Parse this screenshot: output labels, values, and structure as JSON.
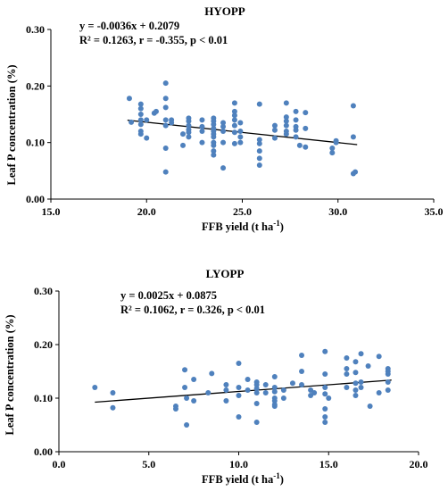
{
  "colors": {
    "point": "#4f81bd",
    "trendline": "#000000",
    "axis": "#000000"
  },
  "chart_data": [
    {
      "type": "scatter",
      "title": "HYOPP",
      "equation": "y = -0.0036x + 0.2079",
      "stats": "R² = 0.1263, r = -0.355, p < 0.01",
      "xlabel": "FFB yield  (t ha",
      "xlabel_sup": "-1",
      "xlabel_tail": ")",
      "ylabel": "Leaf P concentration (%)",
      "xlim": [
        15,
        35
      ],
      "ylim": [
        0,
        0.3
      ],
      "xticks": [
        15,
        20,
        25,
        30,
        35
      ],
      "xtick_labels": [
        "15.0",
        "20.0",
        "25.0",
        "30.0",
        "35.0"
      ],
      "yticks": [
        0,
        0.1,
        0.2,
        0.3
      ],
      "ytick_labels": [
        "0.00",
        "0.10",
        "0.20",
        "0.30"
      ],
      "trendline": {
        "slope": -0.0036,
        "intercept": 0.2079,
        "x_range": [
          19,
          31
        ]
      },
      "points": [
        [
          19.1,
          0.178
        ],
        [
          19.2,
          0.136
        ],
        [
          19.7,
          0.168
        ],
        [
          19.7,
          0.16
        ],
        [
          19.7,
          0.15
        ],
        [
          19.7,
          0.14
        ],
        [
          19.7,
          0.132
        ],
        [
          19.7,
          0.12
        ],
        [
          19.7,
          0.115
        ],
        [
          20.0,
          0.14
        ],
        [
          20.0,
          0.108
        ],
        [
          20.4,
          0.152
        ],
        [
          20.5,
          0.155
        ],
        [
          21.0,
          0.205
        ],
        [
          21.0,
          0.178
        ],
        [
          21.0,
          0.162
        ],
        [
          21.0,
          0.14
        ],
        [
          21.0,
          0.13
        ],
        [
          21.0,
          0.09
        ],
        [
          21.0,
          0.048
        ],
        [
          21.3,
          0.14
        ],
        [
          21.3,
          0.135
        ],
        [
          21.9,
          0.115
        ],
        [
          21.9,
          0.095
        ],
        [
          22.2,
          0.143
        ],
        [
          22.2,
          0.138
        ],
        [
          22.2,
          0.13
        ],
        [
          22.2,
          0.123
        ],
        [
          22.2,
          0.118
        ],
        [
          22.2,
          0.11
        ],
        [
          22.9,
          0.14
        ],
        [
          22.9,
          0.128
        ],
        [
          22.9,
          0.12
        ],
        [
          22.9,
          0.1
        ],
        [
          23.5,
          0.143
        ],
        [
          23.5,
          0.138
        ],
        [
          23.5,
          0.132
        ],
        [
          23.5,
          0.125
        ],
        [
          23.5,
          0.12
        ],
        [
          23.5,
          0.115
        ],
        [
          23.5,
          0.11
        ],
        [
          23.5,
          0.1
        ],
        [
          23.5,
          0.095
        ],
        [
          23.5,
          0.085
        ],
        [
          23.5,
          0.078
        ],
        [
          24.0,
          0.135
        ],
        [
          24.0,
          0.128
        ],
        [
          24.0,
          0.12
        ],
        [
          24.0,
          0.1
        ],
        [
          24.0,
          0.055
        ],
        [
          24.6,
          0.17
        ],
        [
          24.6,
          0.155
        ],
        [
          24.6,
          0.148
        ],
        [
          24.6,
          0.14
        ],
        [
          24.6,
          0.13
        ],
        [
          24.6,
          0.118
        ],
        [
          24.6,
          0.098
        ],
        [
          24.9,
          0.135
        ],
        [
          24.9,
          0.12
        ],
        [
          24.9,
          0.11
        ],
        [
          24.9,
          0.1
        ],
        [
          25.9,
          0.168
        ],
        [
          25.9,
          0.105
        ],
        [
          25.9,
          0.098
        ],
        [
          25.9,
          0.085
        ],
        [
          25.9,
          0.072
        ],
        [
          25.9,
          0.06
        ],
        [
          26.7,
          0.13
        ],
        [
          26.7,
          0.122
        ],
        [
          26.7,
          0.108
        ],
        [
          27.3,
          0.17
        ],
        [
          27.3,
          0.145
        ],
        [
          27.3,
          0.138
        ],
        [
          27.3,
          0.13
        ],
        [
          27.3,
          0.12
        ],
        [
          27.3,
          0.115
        ],
        [
          27.8,
          0.155
        ],
        [
          27.8,
          0.14
        ],
        [
          27.8,
          0.128
        ],
        [
          27.8,
          0.122
        ],
        [
          27.8,
          0.11
        ],
        [
          28.0,
          0.095
        ],
        [
          28.3,
          0.153
        ],
        [
          28.3,
          0.125
        ],
        [
          28.3,
          0.092
        ],
        [
          29.7,
          0.09
        ],
        [
          29.7,
          0.082
        ],
        [
          29.9,
          0.103
        ],
        [
          29.9,
          0.1
        ],
        [
          30.8,
          0.165
        ],
        [
          30.8,
          0.11
        ],
        [
          30.8,
          0.045
        ],
        [
          30.9,
          0.048
        ]
      ]
    },
    {
      "type": "scatter",
      "title": "LYOPP",
      "equation": "y = 0.0025x + 0.0875",
      "stats": "R² = 0.1062, r  = 0.326, p < 0.01",
      "xlabel": "FFB yield  (t ha",
      "xlabel_sup": "-1",
      "xlabel_tail": ")",
      "ylabel": "Leaf P concentration (%)",
      "xlim": [
        0,
        20
      ],
      "ylim": [
        0,
        0.3
      ],
      "xticks": [
        0,
        5,
        10,
        15,
        20
      ],
      "xtick_labels": [
        "0.0",
        "5.0",
        "10.0",
        "15.0",
        "20.0"
      ],
      "yticks": [
        0,
        0.1,
        0.2,
        0.3
      ],
      "ytick_labels": [
        "0.00",
        "0.10",
        "0.20",
        "0.30"
      ],
      "trendline": {
        "slope": 0.0025,
        "intercept": 0.0875,
        "x_range": [
          2,
          18.5
        ]
      },
      "points": [
        [
          2.0,
          0.12
        ],
        [
          3.0,
          0.11
        ],
        [
          3.0,
          0.082
        ],
        [
          6.5,
          0.085
        ],
        [
          6.5,
          0.08
        ],
        [
          7.0,
          0.153
        ],
        [
          7.0,
          0.12
        ],
        [
          7.1,
          0.1
        ],
        [
          7.1,
          0.05
        ],
        [
          7.5,
          0.135
        ],
        [
          7.5,
          0.095
        ],
        [
          8.5,
          0.146
        ],
        [
          8.3,
          0.11
        ],
        [
          9.3,
          0.125
        ],
        [
          9.3,
          0.115
        ],
        [
          9.3,
          0.095
        ],
        [
          10.0,
          0.165
        ],
        [
          10.0,
          0.12
        ],
        [
          10.0,
          0.105
        ],
        [
          10.0,
          0.065
        ],
        [
          10.5,
          0.135
        ],
        [
          10.5,
          0.115
        ],
        [
          11.0,
          0.13
        ],
        [
          11.0,
          0.125
        ],
        [
          11.0,
          0.118
        ],
        [
          11.0,
          0.11
        ],
        [
          11.0,
          0.09
        ],
        [
          11.0,
          0.055
        ],
        [
          11.5,
          0.125
        ],
        [
          11.5,
          0.11
        ],
        [
          12.0,
          0.14
        ],
        [
          12.0,
          0.12
        ],
        [
          12.0,
          0.112
        ],
        [
          12.0,
          0.1
        ],
        [
          12.0,
          0.095
        ],
        [
          12.0,
          0.088
        ],
        [
          12.0,
          0.085
        ],
        [
          12.5,
          0.115
        ],
        [
          12.5,
          0.1
        ],
        [
          13.0,
          0.128
        ],
        [
          13.5,
          0.18
        ],
        [
          13.5,
          0.15
        ],
        [
          13.5,
          0.125
        ],
        [
          14.0,
          0.115
        ],
        [
          14.0,
          0.105
        ],
        [
          14.2,
          0.11
        ],
        [
          14.8,
          0.187
        ],
        [
          14.8,
          0.145
        ],
        [
          14.8,
          0.12
        ],
        [
          14.8,
          0.108
        ],
        [
          14.8,
          0.08
        ],
        [
          14.8,
          0.065
        ],
        [
          14.8,
          0.055
        ],
        [
          15.0,
          0.1
        ],
        [
          16.0,
          0.175
        ],
        [
          16.0,
          0.155
        ],
        [
          16.0,
          0.145
        ],
        [
          16.0,
          0.12
        ],
        [
          16.5,
          0.168
        ],
        [
          16.5,
          0.148
        ],
        [
          16.5,
          0.128
        ],
        [
          16.5,
          0.115
        ],
        [
          16.5,
          0.105
        ],
        [
          16.8,
          0.183
        ],
        [
          16.8,
          0.13
        ],
        [
          16.8,
          0.12
        ],
        [
          17.2,
          0.16
        ],
        [
          17.3,
          0.085
        ],
        [
          17.8,
          0.178
        ],
        [
          17.8,
          0.11
        ],
        [
          18.3,
          0.155
        ],
        [
          18.3,
          0.15
        ],
        [
          18.3,
          0.145
        ],
        [
          18.3,
          0.13
        ],
        [
          18.3,
          0.115
        ]
      ]
    }
  ]
}
